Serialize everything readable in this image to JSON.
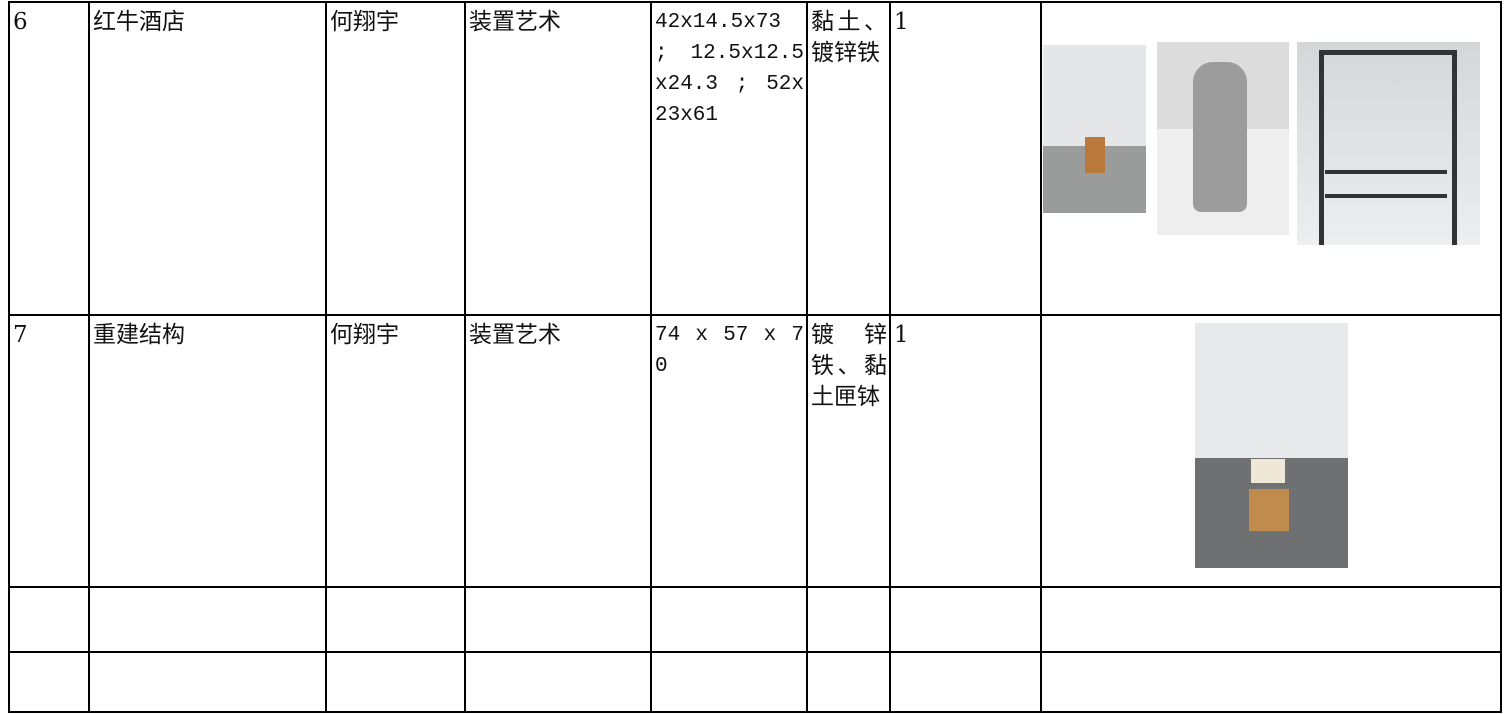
{
  "table": {
    "rows": [
      [
        "6",
        "红牛酒店",
        "何翔宇",
        "装置艺术",
        "42x14.5x73 ; 12.5x12.5x24.3 ; 52x23x61",
        "黏土、镀锌铁",
        "1"
      ],
      [
        "7",
        "重建结构",
        "何翔宇",
        "装置艺术",
        "74 x 57 x 70",
        "镀锌铁、黏土匣钵",
        "1"
      ]
    ]
  }
}
